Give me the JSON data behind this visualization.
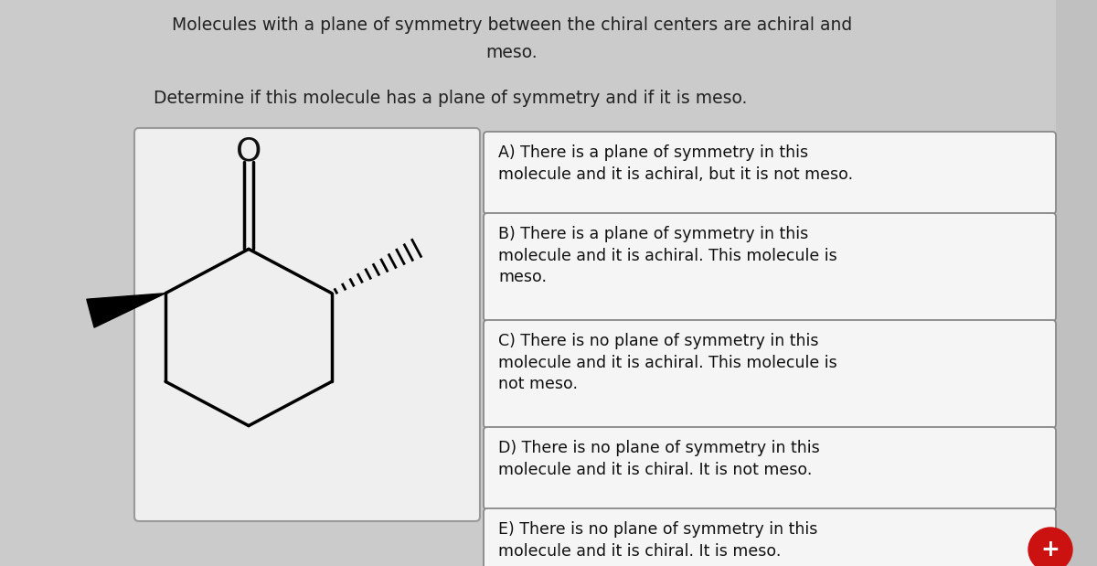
{
  "bg_color": "#d0d0d0",
  "title_line1": "Molecules with a plane of symmetry between the chiral centers are achiral and",
  "title_line2": "meso.",
  "subtitle": "Determine if this molecule has a plane of symmetry and if it is meso.",
  "options": [
    "A) There is a plane of symmetry in this\nmolecule and it is achiral, but it is not meso.",
    "B) There is a plane of symmetry in this\nmolecule and it is achiral. This molecule is\nmeso.",
    "C) There is no plane of symmetry in this\nmolecule and it is achiral. This molecule is\nnot meso.",
    "D) There is no plane of symmetry in this\nmolecule and it is chiral. It is not meso.",
    "E) There is no plane of symmetry in this\nmolecule and it is chiral. It is meso."
  ],
  "option_box_color": "#f8f8f8",
  "option_border_color": "#888888",
  "option_text_color": "#111111",
  "plus_button_color": "#cc1111",
  "plus_button_text": "+",
  "font_size_title": 13.5,
  "font_size_subtitle": 13.5,
  "font_size_option": 12.5
}
